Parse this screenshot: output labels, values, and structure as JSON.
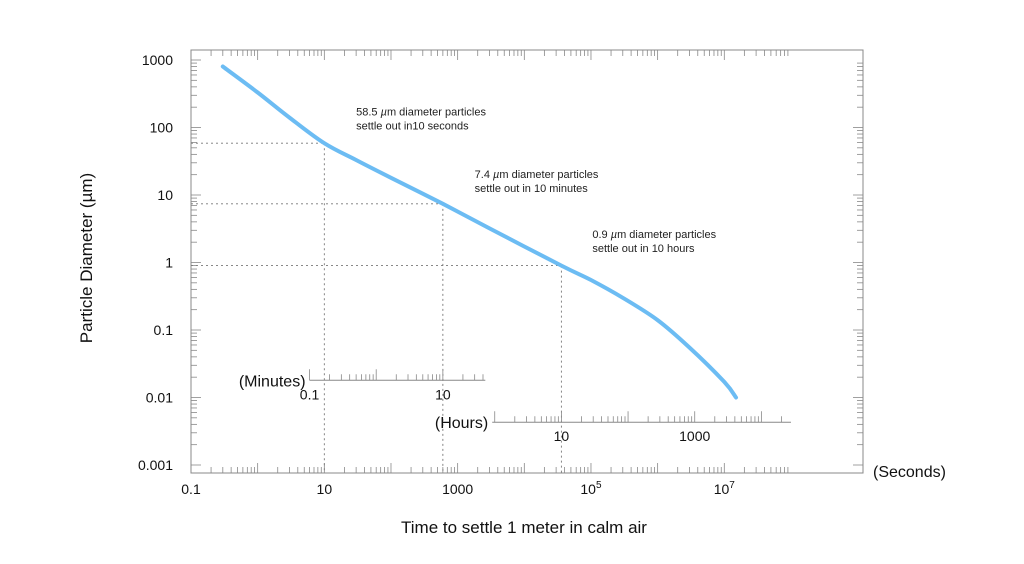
{
  "chart_data": {
    "type": "line",
    "title": "",
    "xlabel": "Time to settle 1 meter in calm air",
    "ylabel": "Particle Diameter (µm)",
    "x_scale": "log",
    "y_scale": "log",
    "xlim": [
      0.1,
      100000000
    ],
    "ylim": [
      0.001,
      1000
    ],
    "x_unit_label": "(Seconds)",
    "x_ticks": [
      {
        "value": 0.1,
        "label": "0.1"
      },
      {
        "value": 10,
        "label": "10"
      },
      {
        "value": 1000,
        "label": "1000"
      },
      {
        "value": 100000,
        "label": "10",
        "sup": "5"
      },
      {
        "value": 10000000,
        "label": "10",
        "sup": "7"
      }
    ],
    "y_ticks": [
      {
        "value": 1000,
        "label": "1000"
      },
      {
        "value": 100,
        "label": "100"
      },
      {
        "value": 10,
        "label": "10"
      },
      {
        "value": 1,
        "label": "1"
      },
      {
        "value": 0.1,
        "label": "0.1"
      },
      {
        "value": 0.01,
        "label": "0.01"
      },
      {
        "value": 0.001,
        "label": "0.001"
      }
    ],
    "secondary_axes": [
      {
        "unit_label": "(Minutes)",
        "seconds_per_unit": 60,
        "y_position_value": 0.018,
        "range_seconds": [
          6,
          2600
        ],
        "ticks": [
          {
            "value": 0.1,
            "label": "0.1"
          },
          {
            "value": 10,
            "label": "10"
          }
        ]
      },
      {
        "unit_label": "(Hours)",
        "seconds_per_unit": 3600,
        "y_position_value": 0.0043,
        "range_seconds": [
          3300,
          100000000
        ],
        "ticks": [
          {
            "value": 10,
            "label": "10"
          },
          {
            "value": 1000,
            "label": "1000"
          }
        ]
      }
    ],
    "series": [
      {
        "color": "#6cbcf3",
        "points": [
          [
            0.3,
            800
          ],
          [
            1,
            330
          ],
          [
            3,
            140
          ],
          [
            10,
            58.5
          ],
          [
            30,
            33
          ],
          [
            100,
            18
          ],
          [
            600,
            7.4
          ],
          [
            3000,
            3.2
          ],
          [
            36000,
            0.9
          ],
          [
            100000,
            0.55
          ],
          [
            300000,
            0.3
          ],
          [
            1000000,
            0.14
          ],
          [
            3000000,
            0.055
          ],
          [
            10000000,
            0.017
          ],
          [
            15000000,
            0.01
          ]
        ]
      }
    ],
    "annotations": [
      {
        "x": 10,
        "y": 58.5,
        "line1_prefix": "58.5 ",
        "line1_unit": "µ",
        "line1_suffix": "m diameter particles",
        "line2": "settle out in10 seconds",
        "anchor_x": 30,
        "anchor_y": 150
      },
      {
        "x": 600,
        "y": 7.4,
        "line1_prefix": "7.4 ",
        "line1_unit": "µ",
        "line1_suffix": "m diameter particles",
        "line2": "settle out in 10 minutes",
        "anchor_x": 1800,
        "anchor_y": 18
      },
      {
        "x": 36000,
        "y": 0.9,
        "line1_prefix": "0.9 ",
        "line1_unit": "µ",
        "line1_suffix": "m diameter particles",
        "line2": "settle out in 10 hours",
        "anchor_x": 105000,
        "anchor_y": 2.3
      }
    ],
    "grid": false,
    "guide_lines": "dotted"
  }
}
